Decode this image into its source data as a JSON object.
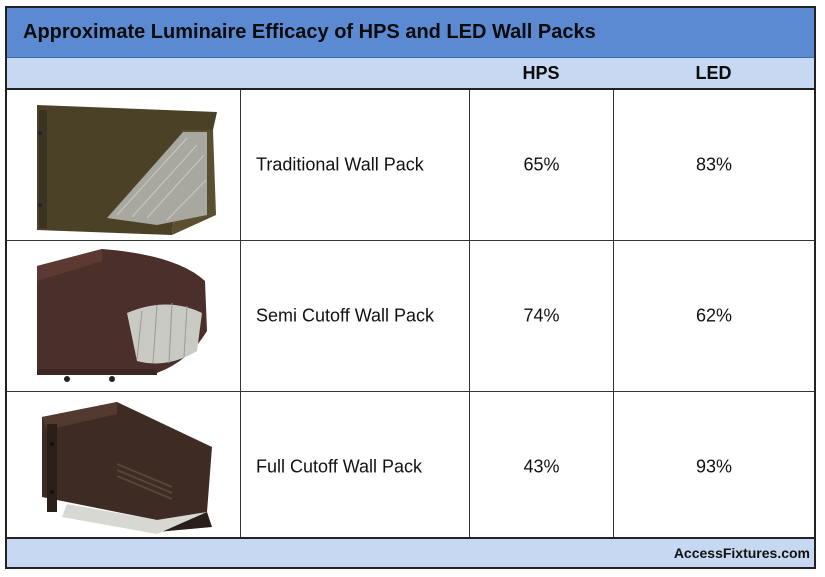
{
  "table": {
    "title": "Approximate Luminaire Efficacy of HPS and LED Wall Packs",
    "columns": [
      "HPS",
      "LED"
    ],
    "rows": [
      {
        "name": "Traditional Wall Pack",
        "hps": "65%",
        "led": "83%",
        "image": "traditional-wall-pack-image"
      },
      {
        "name": "Semi Cutoff Wall Pack",
        "hps": "74%",
        "led": "62%",
        "image": "semi-cutoff-wall-pack-image"
      },
      {
        "name": "Full Cutoff Wall Pack",
        "hps": "43%",
        "led": "93%",
        "image": "full-cutoff-wall-pack-image"
      }
    ],
    "footer": "AccessFixtures.com"
  }
}
